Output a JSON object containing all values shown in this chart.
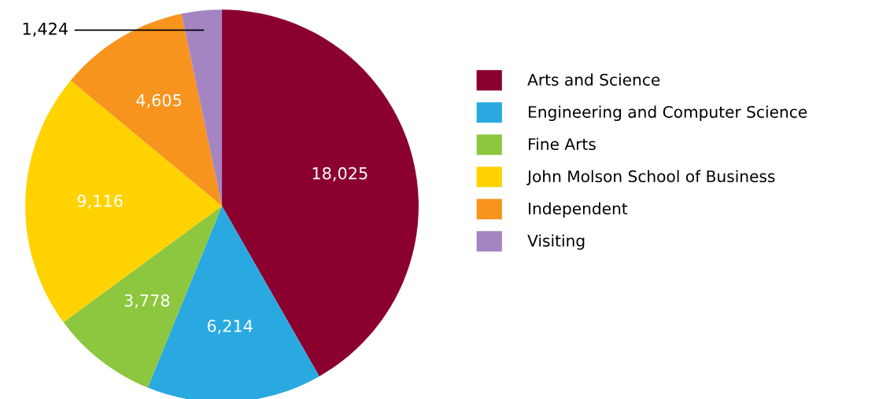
{
  "chart_data": {
    "type": "pie",
    "categories": [
      "Arts and Science",
      "Engineering and Computer Science",
      "Fine Arts",
      "John Molson School of Business",
      "Independent",
      "Visiting"
    ],
    "values": [
      18025,
      6214,
      3778,
      9116,
      4605,
      1424
    ],
    "colors": [
      "#8b002f",
      "#29a9e0",
      "#8dc63f",
      "#ffd200",
      "#f7941d",
      "#a584c2"
    ],
    "value_labels": [
      "18,025",
      "6,214",
      "3,778",
      "9,116",
      "4,605",
      "1,424"
    ],
    "legend": "right"
  }
}
